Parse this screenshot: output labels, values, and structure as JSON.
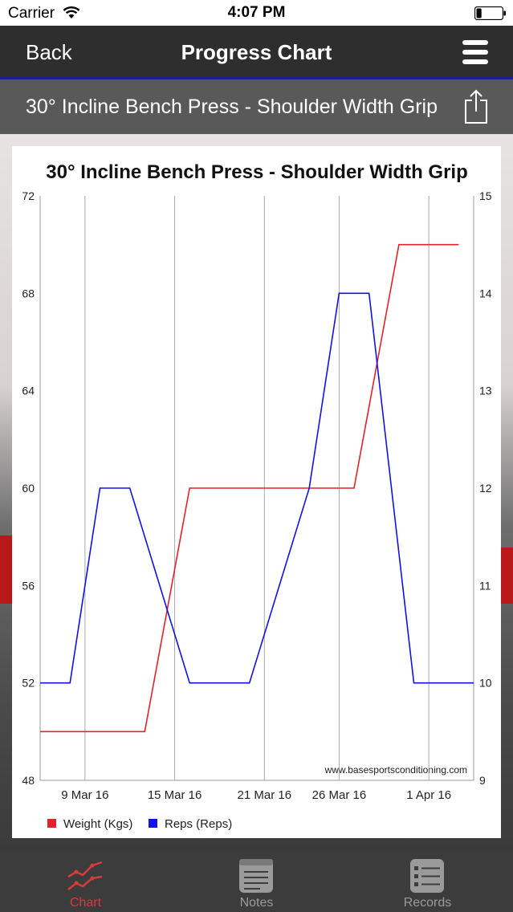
{
  "status_bar": {
    "carrier": "Carrier",
    "time": "4:07 PM",
    "battery_level": 0.2
  },
  "nav": {
    "back_label": "Back",
    "title": "Progress Chart"
  },
  "exercise": {
    "name": "30° Incline Bench Press - Shoulder Width Grip"
  },
  "chart_data": {
    "type": "line",
    "title": "30° Incline Bench Press - Shoulder Width Grip",
    "watermark": "www.basesportsconditioning.com",
    "x_ticks": [
      "9 Mar 16",
      "15 Mar 16",
      "21 Mar 16",
      "26 Mar 16",
      "1 Apr 16"
    ],
    "y_left": {
      "min": 48,
      "max": 72,
      "ticks": [
        "72",
        "68",
        "64",
        "60",
        "56",
        "52",
        "48"
      ]
    },
    "y_right": {
      "min": 9,
      "max": 15,
      "ticks": [
        "15",
        "14",
        "13",
        "12",
        "11",
        "10",
        "9"
      ]
    },
    "grid": "vertical",
    "legend_position": "bottom-left",
    "series": [
      {
        "name": "Weight (Kgs)",
        "axis": "left",
        "color": "#e0242a",
        "x": [
          "6 Mar 16",
          "13 Mar 16",
          "16 Mar 16",
          "20 Mar 16",
          "27 Mar 16",
          "30 Mar 16",
          "3 Apr 16"
        ],
        "values": [
          50,
          50,
          60,
          60,
          60,
          70,
          70
        ]
      },
      {
        "name": "Reps (Reps)",
        "axis": "right",
        "color": "#1212e6",
        "x": [
          "6 Mar 16",
          "8 Mar 16",
          "10 Mar 16",
          "12 Mar 16",
          "16 Mar 16",
          "20 Mar 16",
          "24 Mar 16",
          "26 Mar 16",
          "28 Mar 16",
          "31 Mar 16",
          "4 Apr 16"
        ],
        "values": [
          10,
          10,
          12,
          12,
          10,
          10,
          12,
          14,
          14,
          10,
          10
        ]
      }
    ]
  },
  "tabs": [
    {
      "label": "Chart",
      "icon": "chart-icon",
      "active": true,
      "color": "#d83b3b"
    },
    {
      "label": "Notes",
      "icon": "notes-icon",
      "active": false,
      "color": "#9a9a9a"
    },
    {
      "label": "Records",
      "icon": "records-icon",
      "active": false,
      "color": "#9a9a9a"
    }
  ]
}
